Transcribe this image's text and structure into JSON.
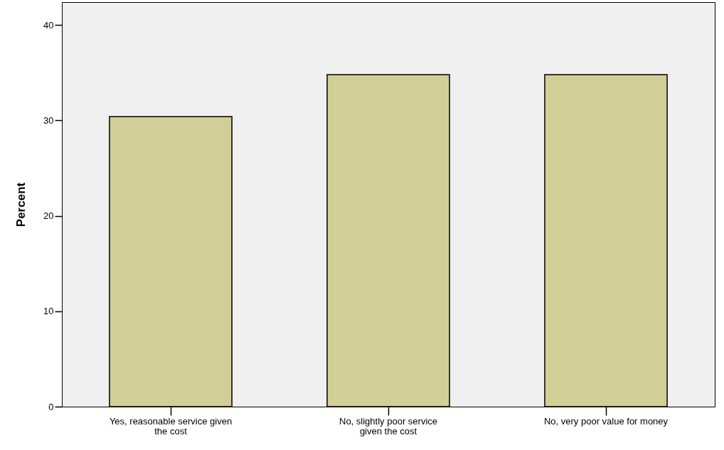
{
  "chart_data": {
    "type": "bar",
    "ylabel": "Percent",
    "categories": [
      "Yes, reasonable service given the cost",
      "No, slightly poor service given the cost",
      "No, very poor value for money"
    ],
    "values": [
      30.4,
      34.8,
      34.8
    ],
    "color": "#d3ce97",
    "ylim": [
      0,
      42.4
    ],
    "yticks": [
      0,
      10,
      20,
      30,
      40
    ],
    "grid": false
  }
}
